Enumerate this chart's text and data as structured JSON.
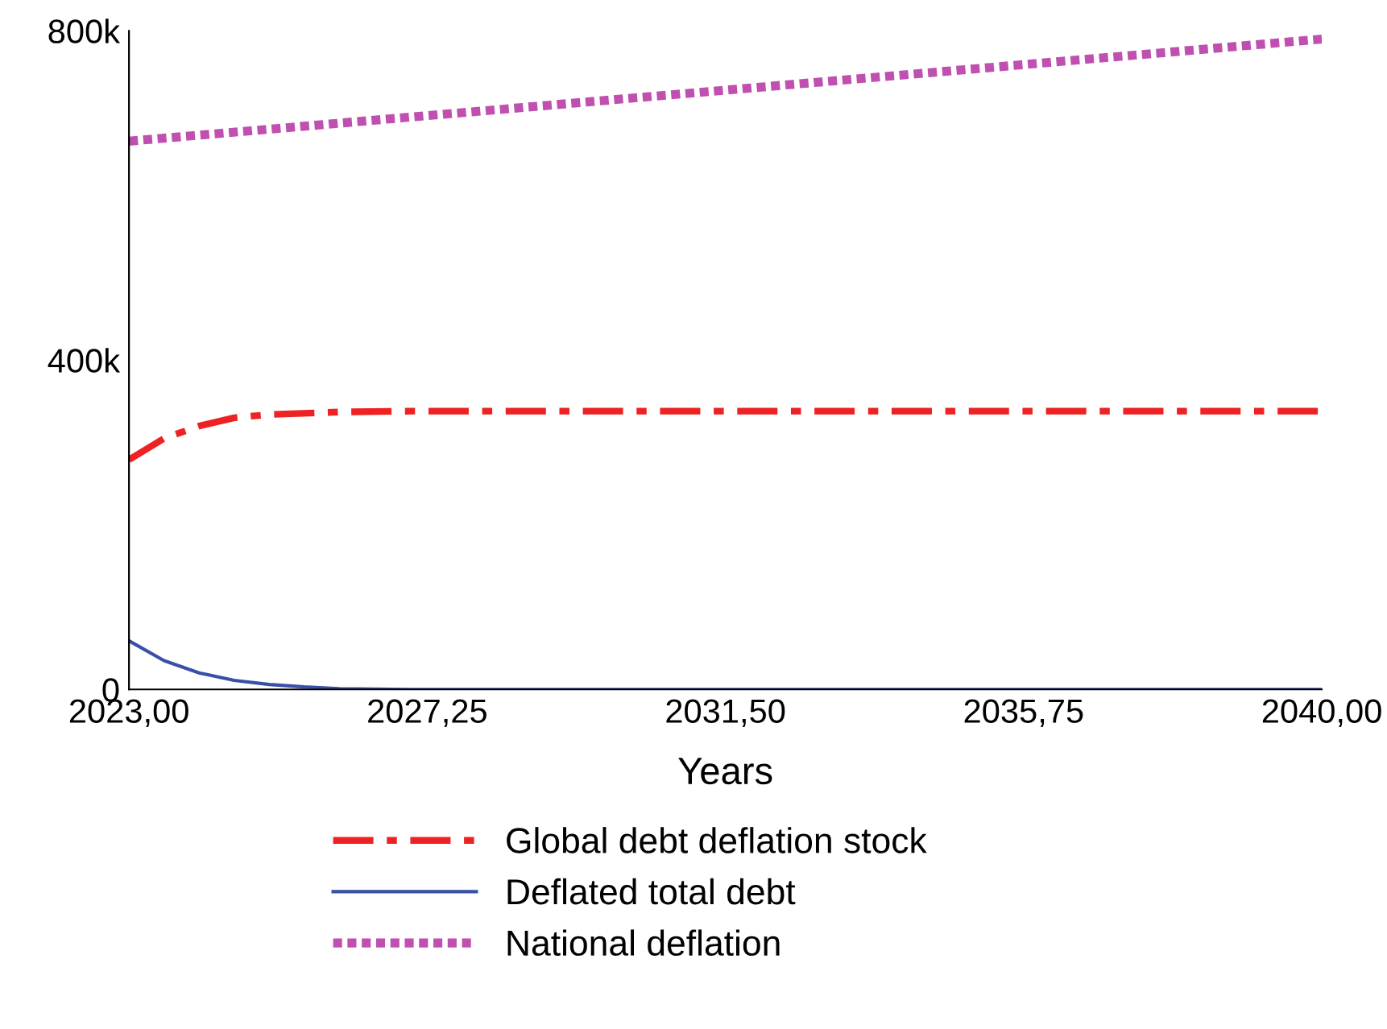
{
  "chart_data": {
    "type": "line",
    "xlabel": "Years",
    "xlim": [
      2023,
      2040
    ],
    "xticks": [
      {
        "value": 2023,
        "label": "2023,00"
      },
      {
        "value": 2027.25,
        "label": "2027,25"
      },
      {
        "value": 2031.5,
        "label": "2031,50"
      },
      {
        "value": 2035.75,
        "label": "2035,75"
      },
      {
        "value": 2040,
        "label": "2040,00"
      }
    ],
    "ylim": [
      0,
      800000
    ],
    "yticks": [
      {
        "value": 0,
        "label": "0"
      },
      {
        "value": 400000,
        "label": "400k"
      },
      {
        "value": 800000,
        "label": "800k"
      }
    ],
    "grid": false,
    "legend": "bottom",
    "marker": "none",
    "series": [
      {
        "name": "Global debt deflation stock",
        "color": "#ee2222",
        "line_style": "dashdot",
        "x": [
          2023,
          2023.5,
          2024,
          2024.5,
          2025,
          2026,
          2027,
          2040
        ],
        "values": [
          279000,
          305000,
          320000,
          330000,
          334000,
          337000,
          338000,
          338000
        ]
      },
      {
        "name": "Deflated total debt",
        "color": "#3a4fa8",
        "line_style": "solid",
        "x": [
          2023,
          2023.5,
          2024,
          2024.5,
          2025,
          2025.5,
          2026,
          2027,
          2040
        ],
        "values": [
          59000,
          35000,
          20000,
          11000,
          6000,
          3000,
          1000,
          0,
          0
        ]
      },
      {
        "name": "National deflation",
        "color": "#c050b0",
        "line_style": "dotted",
        "x": [
          2023,
          2040
        ],
        "values": [
          666000,
          790000
        ]
      }
    ]
  }
}
